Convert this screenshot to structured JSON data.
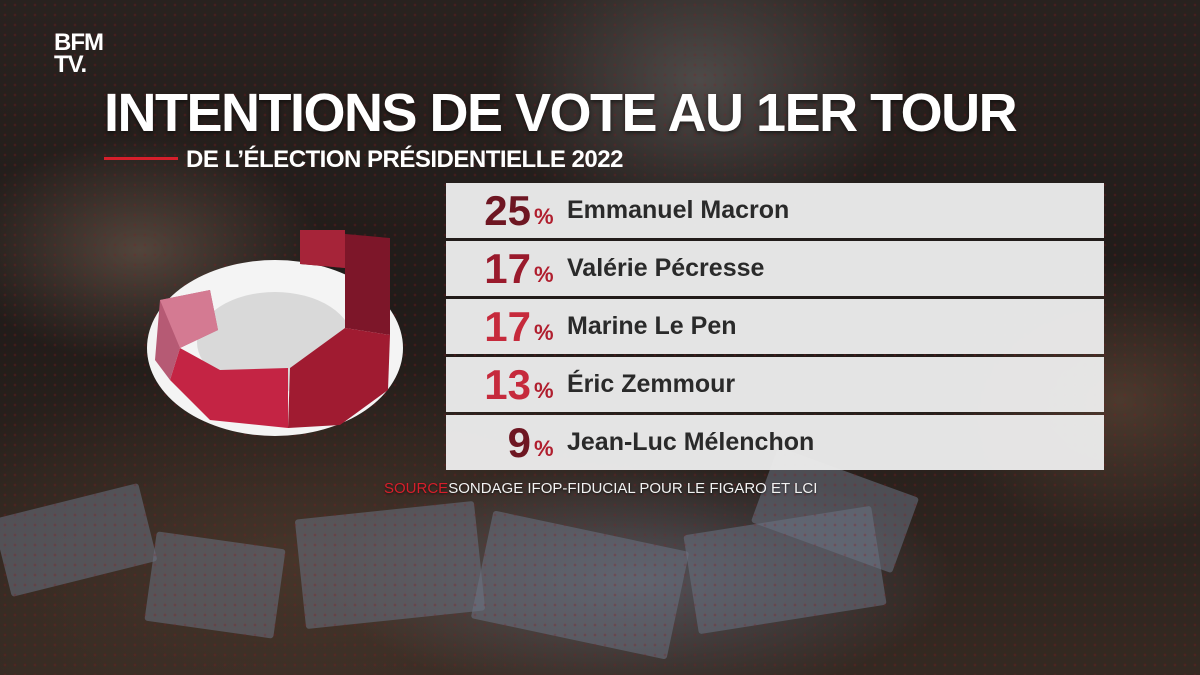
{
  "brand": {
    "line1": "BFM",
    "line2": "TV."
  },
  "title": "INTENTIONS DE VOTE AU 1ER TOUR",
  "subtitle": "DE L’ÉLECTION PRÉSIDENTIELLE 2022",
  "source": {
    "label": "SOURCE",
    "text": "SONDAGE IFOP-FIDUCIAL POUR LE FIGARO ET LCI"
  },
  "colors": {
    "accent_red": "#d61f2b",
    "percent_dark": "#6e1622",
    "percent_mid": "#9a1a2c",
    "percent_light": "#c62a3c",
    "row_bg": "#ececec"
  },
  "chart_data": {
    "type": "table",
    "title": "INTENTIONS DE VOTE AU 1ER TOUR",
    "subtitle": "DE L’ÉLECTION PRÉSIDENTIELLE 2022",
    "unit": "%",
    "rows": [
      {
        "value": 25,
        "candidate": "Emmanuel Macron"
      },
      {
        "value": 17,
        "candidate": "Valérie Pécresse"
      },
      {
        "value": 17,
        "candidate": "Marine Le Pen"
      },
      {
        "value": 13,
        "candidate": "Éric Zemmour"
      },
      {
        "value": 9,
        "candidate": "Jean-Luc Mélenchon"
      }
    ]
  }
}
